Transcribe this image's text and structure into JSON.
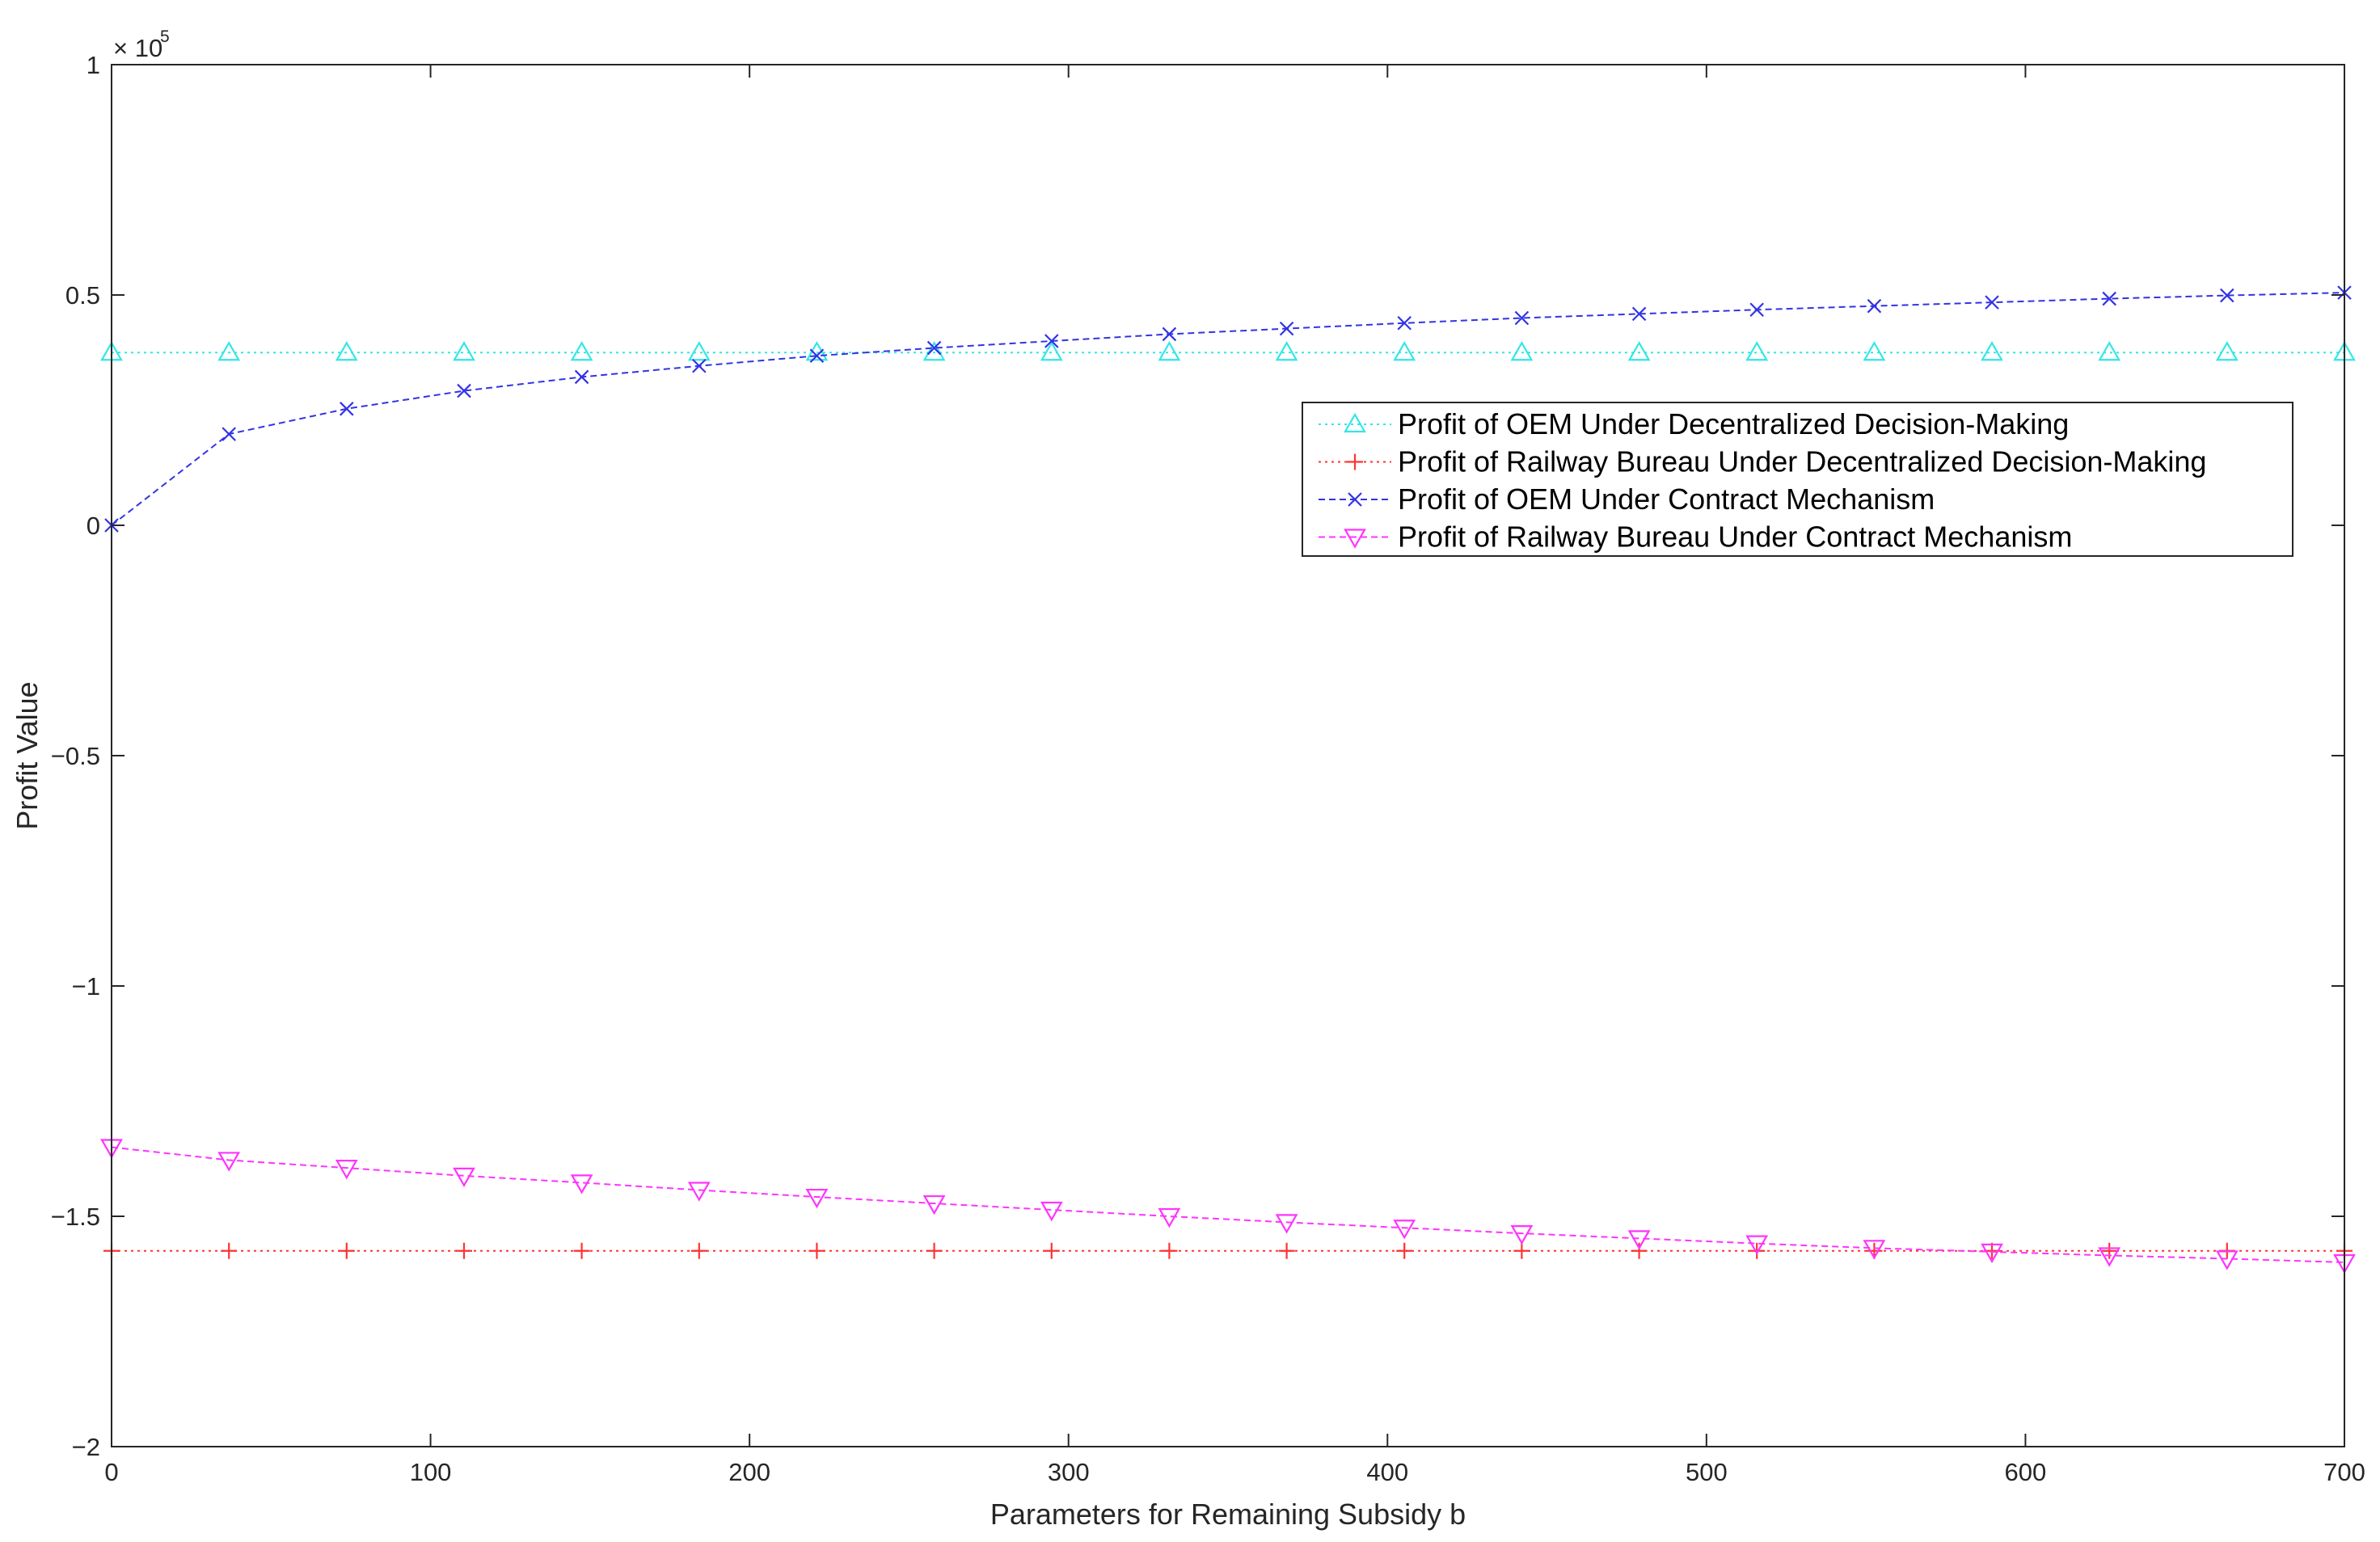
{
  "chart_data": {
    "type": "line",
    "xlabel": "Parameters for Remaining Subsidy b",
    "ylabel": "Profit Value",
    "y_multiplier": {
      "base": "× 10",
      "exponent": "5"
    },
    "xlim": [
      0,
      700
    ],
    "ylim": [
      -200000,
      100000
    ],
    "xticks": [
      0,
      100,
      200,
      300,
      400,
      500,
      600,
      700
    ],
    "xtick_labels": [
      "0",
      "100",
      "200",
      "300",
      "400",
      "500",
      "600",
      "700"
    ],
    "yticks": [
      -200000,
      -150000,
      -100000,
      -50000,
      0,
      50000,
      100000
    ],
    "ytick_labels": [
      "−2",
      "−1.5",
      "−1",
      "−0.5",
      "0",
      "0.5",
      "1"
    ],
    "grid": false,
    "box": true,
    "legend_position": "upper-right",
    "x": [
      0,
      36.8,
      73.7,
      110.5,
      147.4,
      184.2,
      221.1,
      257.9,
      294.7,
      331.6,
      368.4,
      405.3,
      442.1,
      478.9,
      515.8,
      552.6,
      589.5,
      626.3,
      663.2,
      700
    ],
    "series": [
      {
        "name": "Profit of OEM Under Decentralized Decision-Making",
        "color": "#33e6e6",
        "marker": "triangle-up",
        "line_style": "dotted",
        "values": [
          37500,
          37500,
          37500,
          37500,
          37500,
          37500,
          37500,
          37500,
          37500,
          37500,
          37500,
          37500,
          37500,
          37500,
          37500,
          37500,
          37500,
          37500,
          37500,
          37500
        ]
      },
      {
        "name": "Profit of Railway Bureau Under Decentralized Decision-Making",
        "color": "#ff3333",
        "marker": "plus",
        "line_style": "dotted",
        "values": [
          -157500,
          -157500,
          -157500,
          -157500,
          -157500,
          -157500,
          -157500,
          -157500,
          -157500,
          -157500,
          -157500,
          -157500,
          -157500,
          -157500,
          -157500,
          -157500,
          -157500,
          -157500,
          -157500,
          -157500
        ]
      },
      {
        "name": "Profit of OEM Under Contract Mechanism",
        "color": "#3333e6",
        "marker": "x",
        "line_style": "dashed",
        "values": [
          0,
          19800,
          25300,
          29200,
          32200,
          34600,
          36800,
          38500,
          40000,
          41500,
          42700,
          43900,
          45000,
          45900,
          46800,
          47600,
          48400,
          49200,
          49900,
          50500
        ]
      },
      {
        "name": "Profit of Railway Bureau Under Contract Mechanism",
        "color": "#ff33ff",
        "marker": "triangle-down",
        "line_style": "dashed",
        "values": [
          -135000,
          -137800,
          -139500,
          -141200,
          -142700,
          -144300,
          -145800,
          -147200,
          -148600,
          -150000,
          -151300,
          -152500,
          -153700,
          -154800,
          -155900,
          -156900,
          -157700,
          -158500,
          -159200,
          -160000
        ]
      }
    ]
  }
}
